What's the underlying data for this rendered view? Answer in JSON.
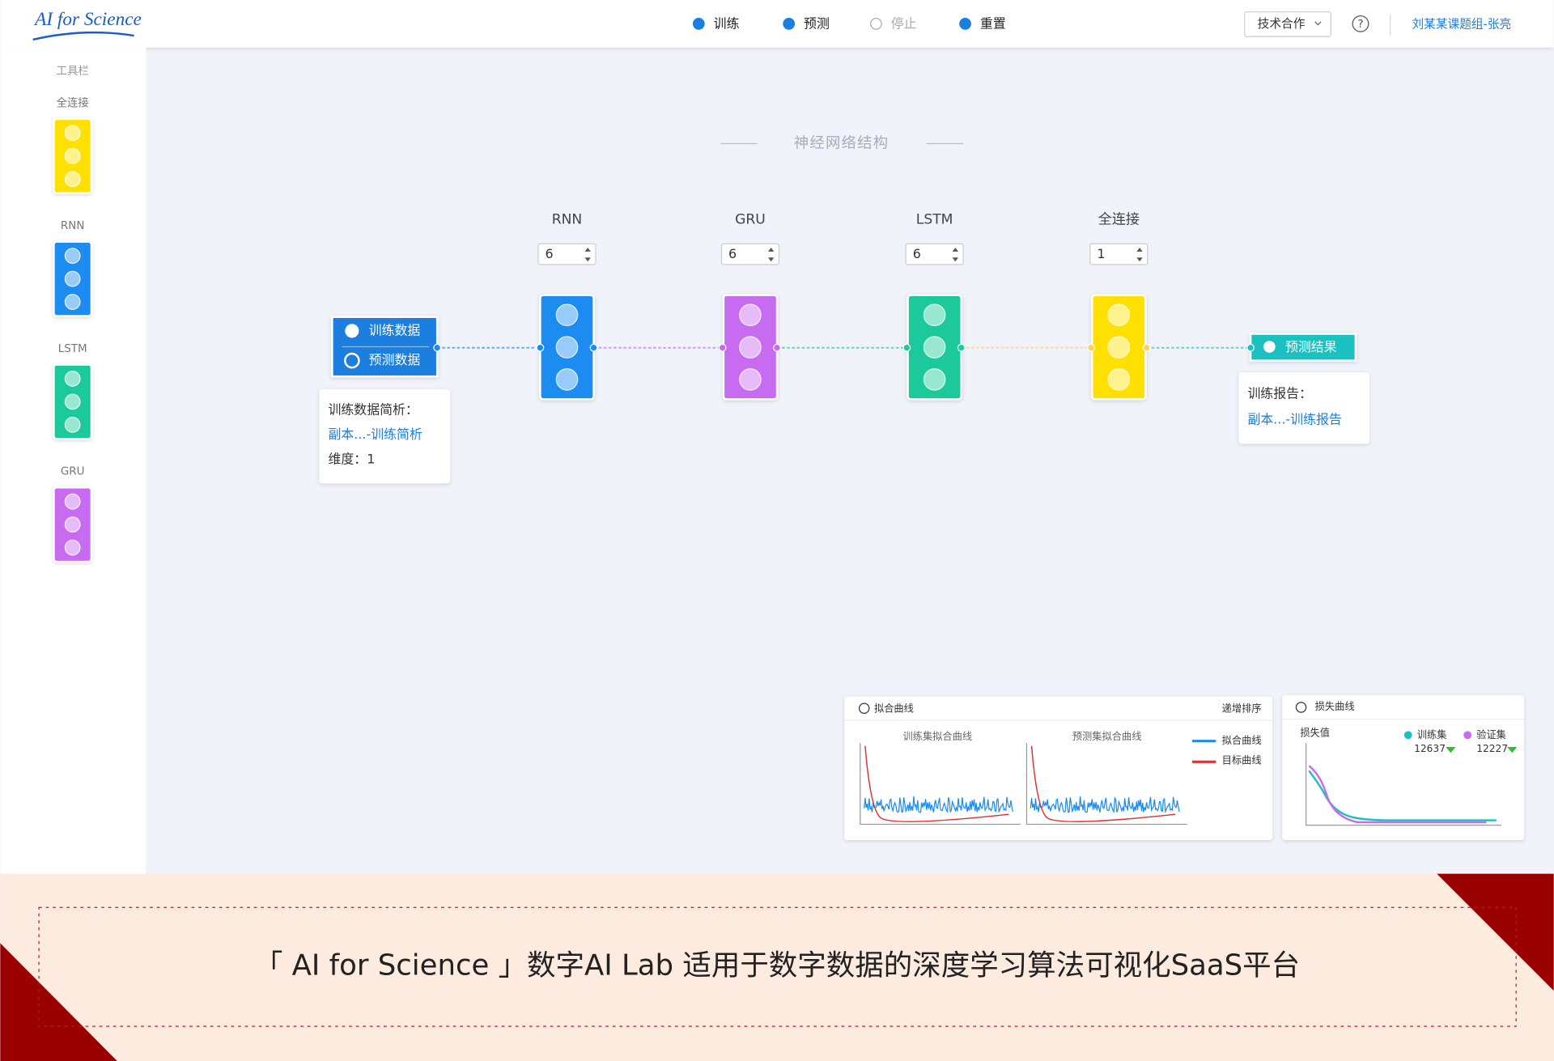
{
  "header": {
    "logo": "AI for Science",
    "nav": [
      "训练",
      "预测",
      "停止",
      "重置"
    ],
    "dropdown": "技术合作",
    "user": "刘某某课题组-张亮"
  },
  "sidebar": {
    "title": "工具栏",
    "items": [
      {
        "name": "全连接",
        "color": "#ffe000"
      },
      {
        "name": "RNN",
        "color": "#1a8cf0"
      },
      {
        "name": "LSTM",
        "color": "#1ec99a"
      },
      {
        "name": "GRU",
        "color": "#c76cf0"
      }
    ]
  },
  "canvas": {
    "title": "神经网络结构",
    "layers": [
      {
        "name": "RNN",
        "units": "6",
        "color": "#1a8cf0"
      },
      {
        "name": "GRU",
        "units": "6",
        "color": "#c76cf0"
      },
      {
        "name": "LSTM",
        "units": "6",
        "color": "#1ec99a"
      },
      {
        "name": "全连接",
        "units": "1",
        "color": "#ffe000"
      }
    ],
    "input_node": [
      "训练数据",
      "预测数据"
    ],
    "input_tooltip": [
      "训练数据简析：",
      "副本...-训练简析",
      "维度：1"
    ],
    "output_node": "预测结果",
    "output_tooltip": [
      "训练报告：",
      "副本...-训练报告"
    ]
  },
  "fit_panel": {
    "title": "拟合曲线",
    "sort": "递增排序",
    "charts": [
      "训练集拟合曲线",
      "预测集拟合曲线"
    ],
    "legend": [
      "拟合曲线",
      "目标曲线"
    ]
  },
  "loss_panel": {
    "title": "损失曲线",
    "y_label": "损失值",
    "legend": [
      {
        "name": "训练集",
        "value": "12637"
      },
      {
        "name": "验证集",
        "value": "12227"
      }
    ]
  },
  "banner": "「 AI for Science 」数字AI Lab 适用于数字数据的深度学习算法可视化SaaS平台"
}
